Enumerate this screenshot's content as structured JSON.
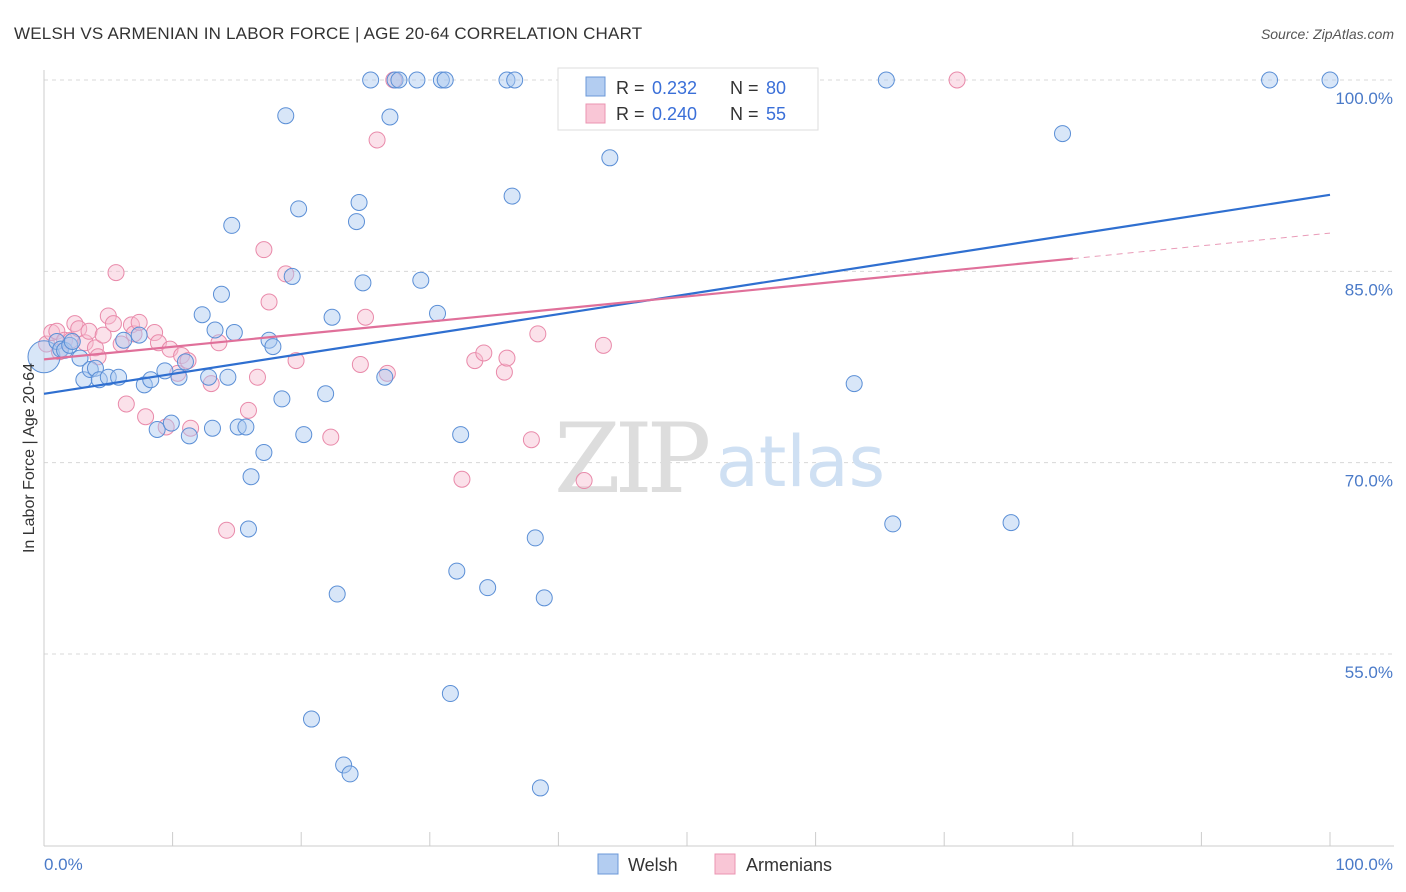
{
  "title": "WELSH VS ARMENIAN IN LABOR FORCE | AGE 20-64 CORRELATION CHART",
  "source": "Source: ZipAtlas.com",
  "watermark": {
    "zip": "ZIP",
    "atlas": "atlas"
  },
  "colors": {
    "welsh_fill": "#a9c8ef",
    "welsh_stroke": "#5b8fd6",
    "welsh_line": "#2f6fd0",
    "armenian_fill": "#f6bcd0",
    "armenian_stroke": "#e98aaa",
    "armenian_line": "#e0709a",
    "grid": "#d8d8d8",
    "tick_text": "#4a7ac8"
  },
  "legend": {
    "welsh": {
      "r_label": "R =",
      "r_value": "0.232",
      "n_label": "N =",
      "n_value": "80"
    },
    "armenian": {
      "r_label": "R =",
      "r_value": "0.240",
      "n_label": "N =",
      "n_value": "55"
    }
  },
  "bottom_legend": {
    "welsh": "Welsh",
    "armenian": "Armenians"
  },
  "chart_data": {
    "type": "scatter",
    "title": "WELSH VS ARMENIAN IN LABOR FORCE | AGE 20-64 CORRELATION CHART",
    "xlabel": "",
    "ylabel": "In Labor Force | Age 20-64",
    "xlim": [
      0,
      100
    ],
    "ylim": [
      40,
      101.5
    ],
    "x_tick_labels": [
      {
        "value": 0,
        "label": "0.0%"
      },
      {
        "value": 100,
        "label": "100.0%"
      }
    ],
    "y_tick_labels": [
      {
        "value": 55,
        "label": "55.0%"
      },
      {
        "value": 70,
        "label": "70.0%"
      },
      {
        "value": 85,
        "label": "85.0%"
      },
      {
        "value": 100,
        "label": "100.0%"
      }
    ],
    "grid": "horizontal dashed",
    "legend_position": "top-center",
    "series": [
      {
        "name": "Welsh",
        "r": 0.232,
        "n": 80,
        "trend": {
          "x0": 0,
          "y0": 75.4,
          "x1": 100,
          "y1": 91.0
        },
        "points": [
          [
            0.0,
            78.3
          ],
          [
            1.0,
            79.5
          ],
          [
            1.3,
            78.9
          ],
          [
            1.6,
            78.8
          ],
          [
            2.0,
            79.2
          ],
          [
            2.2,
            79.5
          ],
          [
            2.8,
            78.2
          ],
          [
            3.1,
            76.5
          ],
          [
            3.6,
            77.3
          ],
          [
            4.0,
            77.4
          ],
          [
            4.3,
            76.5
          ],
          [
            5.0,
            76.7
          ],
          [
            5.8,
            76.7
          ],
          [
            6.2,
            79.6
          ],
          [
            7.4,
            80.0
          ],
          [
            7.8,
            76.1
          ],
          [
            8.3,
            76.5
          ],
          [
            8.8,
            72.6
          ],
          [
            9.4,
            77.2
          ],
          [
            9.9,
            73.1
          ],
          [
            10.5,
            76.7
          ],
          [
            11.0,
            77.9
          ],
          [
            11.3,
            72.1
          ],
          [
            12.3,
            81.6
          ],
          [
            12.8,
            76.7
          ],
          [
            13.1,
            72.7
          ],
          [
            13.3,
            80.4
          ],
          [
            13.8,
            83.2
          ],
          [
            14.3,
            76.7
          ],
          [
            14.6,
            88.6
          ],
          [
            14.8,
            80.2
          ],
          [
            15.1,
            72.8
          ],
          [
            15.7,
            72.8
          ],
          [
            15.9,
            64.8
          ],
          [
            16.1,
            68.9
          ],
          [
            17.1,
            70.8
          ],
          [
            17.5,
            79.6
          ],
          [
            17.8,
            79.1
          ],
          [
            18.5,
            75.0
          ],
          [
            18.8,
            97.2
          ],
          [
            19.3,
            84.6
          ],
          [
            19.8,
            89.9
          ],
          [
            20.2,
            72.2
          ],
          [
            20.8,
            49.9
          ],
          [
            21.9,
            75.4
          ],
          [
            22.4,
            81.4
          ],
          [
            22.8,
            59.7
          ],
          [
            23.3,
            46.3
          ],
          [
            23.8,
            45.6
          ],
          [
            24.3,
            88.9
          ],
          [
            24.5,
            90.4
          ],
          [
            24.8,
            84.1
          ],
          [
            25.4,
            100.0
          ],
          [
            26.5,
            76.7
          ],
          [
            26.9,
            97.1
          ],
          [
            27.3,
            100.0
          ],
          [
            27.6,
            100.0
          ],
          [
            29.0,
            100.0
          ],
          [
            29.3,
            84.3
          ],
          [
            30.6,
            81.7
          ],
          [
            30.9,
            100.0
          ],
          [
            31.2,
            100.0
          ],
          [
            31.6,
            51.9
          ],
          [
            32.1,
            61.5
          ],
          [
            32.4,
            72.2
          ],
          [
            34.5,
            60.2
          ],
          [
            36.0,
            100.0
          ],
          [
            36.4,
            90.9
          ],
          [
            36.6,
            100.0
          ],
          [
            38.2,
            64.1
          ],
          [
            38.6,
            44.5
          ],
          [
            38.9,
            59.4
          ],
          [
            41.0,
            100.0
          ],
          [
            44.0,
            93.9
          ],
          [
            63.0,
            76.2
          ],
          [
            65.5,
            100.0
          ],
          [
            66.0,
            65.2
          ],
          [
            75.2,
            65.3
          ],
          [
            79.2,
            95.8
          ],
          [
            95.3,
            100.0
          ],
          [
            100.0,
            100.0
          ]
        ]
      },
      {
        "name": "Armenians",
        "r": 0.24,
        "n": 55,
        "trend": {
          "x0": 0,
          "y0": 78.1,
          "x1": 80,
          "y1": 86.0,
          "dashed_to_x": 100,
          "dashed_to_y": 88.0
        },
        "points": [
          [
            0.2,
            79.3
          ],
          [
            0.6,
            80.2
          ],
          [
            1.0,
            80.3
          ],
          [
            1.2,
            78.7
          ],
          [
            1.6,
            79.6
          ],
          [
            2.1,
            79.6
          ],
          [
            2.4,
            80.9
          ],
          [
            2.7,
            80.5
          ],
          [
            3.2,
            79.4
          ],
          [
            3.5,
            80.3
          ],
          [
            4.0,
            79.0
          ],
          [
            4.2,
            78.3
          ],
          [
            4.6,
            80.0
          ],
          [
            5.0,
            81.5
          ],
          [
            5.4,
            80.9
          ],
          [
            5.6,
            84.9
          ],
          [
            6.0,
            79.3
          ],
          [
            6.4,
            74.6
          ],
          [
            6.8,
            80.8
          ],
          [
            7.0,
            80.1
          ],
          [
            7.4,
            81.0
          ],
          [
            7.9,
            73.6
          ],
          [
            8.6,
            80.2
          ],
          [
            8.9,
            79.4
          ],
          [
            9.5,
            72.8
          ],
          [
            9.8,
            78.9
          ],
          [
            10.4,
            77.0
          ],
          [
            10.7,
            78.4
          ],
          [
            11.2,
            78.0
          ],
          [
            11.4,
            72.7
          ],
          [
            13.0,
            76.2
          ],
          [
            13.6,
            79.4
          ],
          [
            14.2,
            64.7
          ],
          [
            15.9,
            74.1
          ],
          [
            16.6,
            76.7
          ],
          [
            17.1,
            86.7
          ],
          [
            17.5,
            82.6
          ],
          [
            18.8,
            84.8
          ],
          [
            19.6,
            78.0
          ],
          [
            22.3,
            72.0
          ],
          [
            24.6,
            77.7
          ],
          [
            25.0,
            81.4
          ],
          [
            25.9,
            95.3
          ],
          [
            26.7,
            77.0
          ],
          [
            27.2,
            100.0
          ],
          [
            32.5,
            68.7
          ],
          [
            33.5,
            78.0
          ],
          [
            34.2,
            78.6
          ],
          [
            35.8,
            77.1
          ],
          [
            36.0,
            78.2
          ],
          [
            37.9,
            71.8
          ],
          [
            38.4,
            80.1
          ],
          [
            43.5,
            79.2
          ],
          [
            71.0,
            100.0
          ],
          [
            42.0,
            68.6
          ]
        ]
      }
    ]
  }
}
